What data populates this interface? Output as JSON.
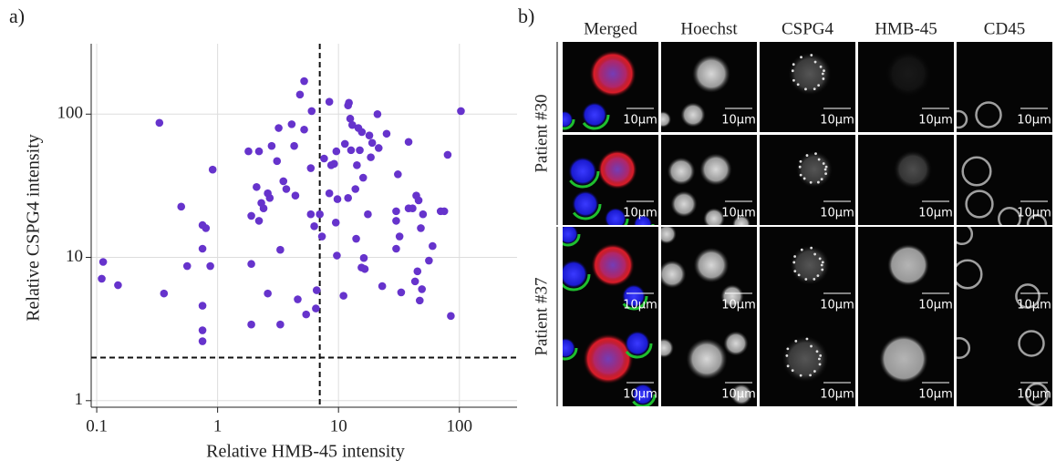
{
  "chart_data": {
    "type": "scatter",
    "panel_label": "a)",
    "xlabel": "Relative HMB-45 intensity",
    "ylabel": "Relative CSPG4 intensity",
    "log_x": true,
    "log_y": true,
    "grid": true,
    "color": "#6633cc",
    "xlim": [
      0.09,
      300
    ],
    "ylim": [
      0.9,
      310
    ],
    "xticks": [
      0.1,
      1,
      10,
      100
    ],
    "yticks": [
      1,
      10,
      100
    ],
    "reference_lines": {
      "x": 7,
      "y": 2
    },
    "x": [
      0.113,
      0.11,
      0.15,
      0.33,
      0.36,
      0.5,
      0.56,
      0.75,
      0.8,
      0.75,
      0.91,
      0.87,
      0.75,
      0.75,
      0.75,
      1.8,
      2.2,
      1.9,
      2.1,
      2.3,
      2.2,
      2.4,
      2.6,
      2.7,
      2.8,
      3.1,
      3.2,
      3.5,
      3.7,
      4.1,
      3.3,
      1.9,
      1.9,
      2.6,
      3.3,
      4.3,
      4.4,
      4.6,
      4.8,
      5.2,
      5.2,
      5.4,
      6.0,
      5.9,
      5.9,
      6.3,
      6.5,
      6.6,
      7.0,
      7.3,
      7.6,
      8.4,
      8.7,
      8.4,
      9.6,
      9.2,
      9.5,
      9.7,
      9.8,
      11,
      11.3,
      12,
      12,
      12.2,
      12.5,
      12.7,
      13,
      13.8,
      14,
      14.2,
      14.6,
      15,
      15.6,
      16,
      15.5,
      16.2,
      16.5,
      17.5,
      18,
      18.5,
      19,
      21.5,
      21,
      23,
      25,
      30,
      30,
      30,
      31,
      32,
      33,
      38,
      38,
      41,
      43,
      44,
      45,
      46,
      48,
      49,
      47,
      50,
      56,
      60,
      70,
      80,
      85,
      103,
      75
    ],
    "values": [
      9.3,
      7.1,
      6.4,
      87,
      5.6,
      22.6,
      8.7,
      16.8,
      16,
      11.5,
      41,
      8.7,
      4.6,
      3.1,
      2.6,
      55,
      55,
      19.5,
      31,
      24,
      18,
      22,
      28,
      26,
      60,
      47,
      80,
      34,
      30,
      85,
      11.3,
      9,
      3.4,
      5.6,
      3.4,
      60,
      27,
      5.1,
      137,
      170,
      78,
      4.0,
      105,
      42,
      20,
      16.5,
      4.4,
      5.9,
      20,
      14,
      49,
      28,
      44,
      122,
      55,
      45,
      17.5,
      10.3,
      25.5,
      5.4,
      62,
      26,
      115,
      120,
      93,
      56,
      84,
      30,
      13.5,
      44,
      80,
      56,
      75,
      36,
      8.5,
      9.9,
      8.3,
      20,
      71,
      50,
      63,
      58,
      100,
      6.3,
      73,
      11.5,
      21,
      18,
      38,
      14,
      5.7,
      22,
      64,
      22,
      6.8,
      27,
      8,
      25,
      16,
      6,
      5,
      20,
      9.5,
      12,
      21,
      52,
      3.9,
      105,
      21
    ]
  },
  "images": {
    "panel_label": "b)",
    "columns": [
      "Merged",
      "Hoechst",
      "CSPG4",
      "HMB-45",
      "CD45"
    ],
    "patients": [
      "Patient #30",
      "Patient #37"
    ],
    "scale_bar": "10μm"
  }
}
